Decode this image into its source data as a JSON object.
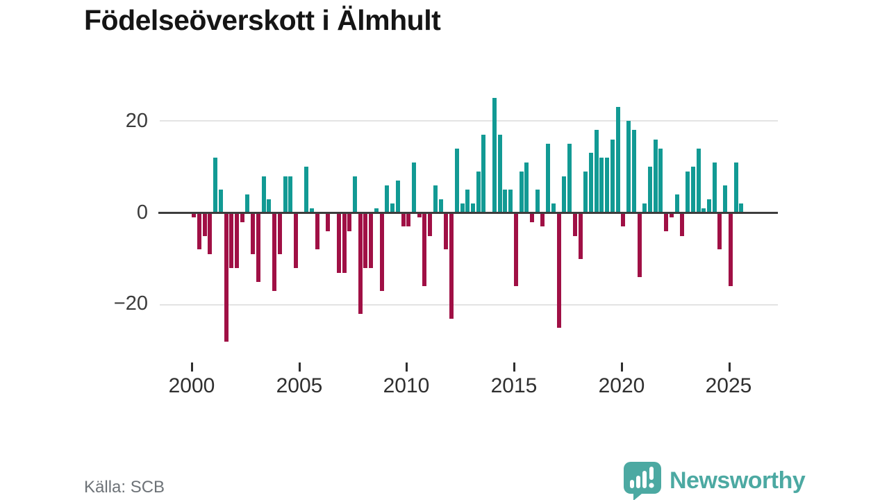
{
  "title": "Födelseöverskott i Älmhult",
  "source": "Källa: SCB",
  "logo": {
    "text": "Newsworthy"
  },
  "colors": {
    "positive": "#129a94",
    "negative": "#a01045",
    "axis": "#3d3d3d",
    "grid": "#e3e3e3",
    "tick_label": "#2f2f2f",
    "title": "#151515",
    "source": "#6d7277",
    "logo": "#4ca9a2",
    "background": "#ffffff"
  },
  "y_axis": {
    "ticks": [
      20,
      0,
      -20
    ],
    "labels": [
      "20",
      "0",
      "−20"
    ]
  },
  "x_axis": {
    "ticks": [
      "2000",
      "2005",
      "2010",
      "2015",
      "2020",
      "2025"
    ]
  },
  "chart_data": {
    "type": "bar",
    "title": "Födelseöverskott i Älmhult",
    "xlabel": "",
    "ylabel": "",
    "ylim": [
      -30,
      27
    ],
    "grid": "horizontal",
    "frequency": "quarterly",
    "start": "2000 Q1",
    "end": "2025 Q3",
    "categories": [
      "2000 Q1",
      "2000 Q2",
      "2000 Q3",
      "2000 Q4",
      "2001 Q1",
      "2001 Q2",
      "2001 Q3",
      "2001 Q4",
      "2002 Q1",
      "2002 Q2",
      "2002 Q3",
      "2002 Q4",
      "2003 Q1",
      "2003 Q2",
      "2003 Q3",
      "2003 Q4",
      "2004 Q1",
      "2004 Q2",
      "2004 Q3",
      "2004 Q4",
      "2005 Q1",
      "2005 Q2",
      "2005 Q3",
      "2005 Q4",
      "2006 Q1",
      "2006 Q2",
      "2006 Q3",
      "2006 Q4",
      "2007 Q1",
      "2007 Q2",
      "2007 Q3",
      "2007 Q4",
      "2008 Q1",
      "2008 Q2",
      "2008 Q3",
      "2008 Q4",
      "2009 Q1",
      "2009 Q2",
      "2009 Q3",
      "2009 Q4",
      "2010 Q1",
      "2010 Q2",
      "2010 Q3",
      "2010 Q4",
      "2011 Q1",
      "2011 Q2",
      "2011 Q3",
      "2011 Q4",
      "2012 Q1",
      "2012 Q2",
      "2012 Q3",
      "2012 Q4",
      "2013 Q1",
      "2013 Q2",
      "2013 Q3",
      "2013 Q4",
      "2014 Q1",
      "2014 Q2",
      "2014 Q3",
      "2014 Q4",
      "2015 Q1",
      "2015 Q2",
      "2015 Q3",
      "2015 Q4",
      "2016 Q1",
      "2016 Q2",
      "2016 Q3",
      "2016 Q4",
      "2017 Q1",
      "2017 Q2",
      "2017 Q3",
      "2017 Q4",
      "2018 Q1",
      "2018 Q2",
      "2018 Q3",
      "2018 Q4",
      "2019 Q1",
      "2019 Q2",
      "2019 Q3",
      "2019 Q4",
      "2020 Q1",
      "2020 Q2",
      "2020 Q3",
      "2020 Q4",
      "2021 Q1",
      "2021 Q2",
      "2021 Q3",
      "2021 Q4",
      "2022 Q1",
      "2022 Q2",
      "2022 Q3",
      "2022 Q4",
      "2023 Q1",
      "2023 Q2",
      "2023 Q3",
      "2023 Q4",
      "2024 Q1",
      "2024 Q2",
      "2024 Q3",
      "2024 Q4",
      "2025 Q1",
      "2025 Q2",
      "2025 Q3"
    ],
    "values": [
      -1,
      -8,
      -5,
      -9,
      12,
      5,
      -28,
      -12,
      -12,
      -2,
      4,
      -9,
      -15,
      8,
      3,
      -17,
      -9,
      8,
      8,
      -12,
      0,
      10,
      1,
      -8,
      0,
      -4,
      0,
      -13,
      -13,
      -4,
      8,
      -22,
      -12,
      -12,
      1,
      -17,
      6,
      2,
      7,
      -3,
      -3,
      11,
      -1,
      -16,
      -5,
      6,
      3,
      -8,
      -23,
      14,
      2,
      5,
      2,
      9,
      17,
      0,
      25,
      17,
      5,
      5,
      -16,
      9,
      11,
      -2,
      5,
      -3,
      15,
      2,
      -25,
      8,
      15,
      -5,
      -10,
      9,
      13,
      18,
      12,
      12,
      16,
      23,
      -3,
      20,
      18,
      -14,
      2,
      10,
      16,
      14,
      -4,
      -1,
      4,
      -5,
      9,
      10,
      14,
      1,
      3,
      11,
      -8,
      6,
      -16,
      11,
      2
    ]
  }
}
